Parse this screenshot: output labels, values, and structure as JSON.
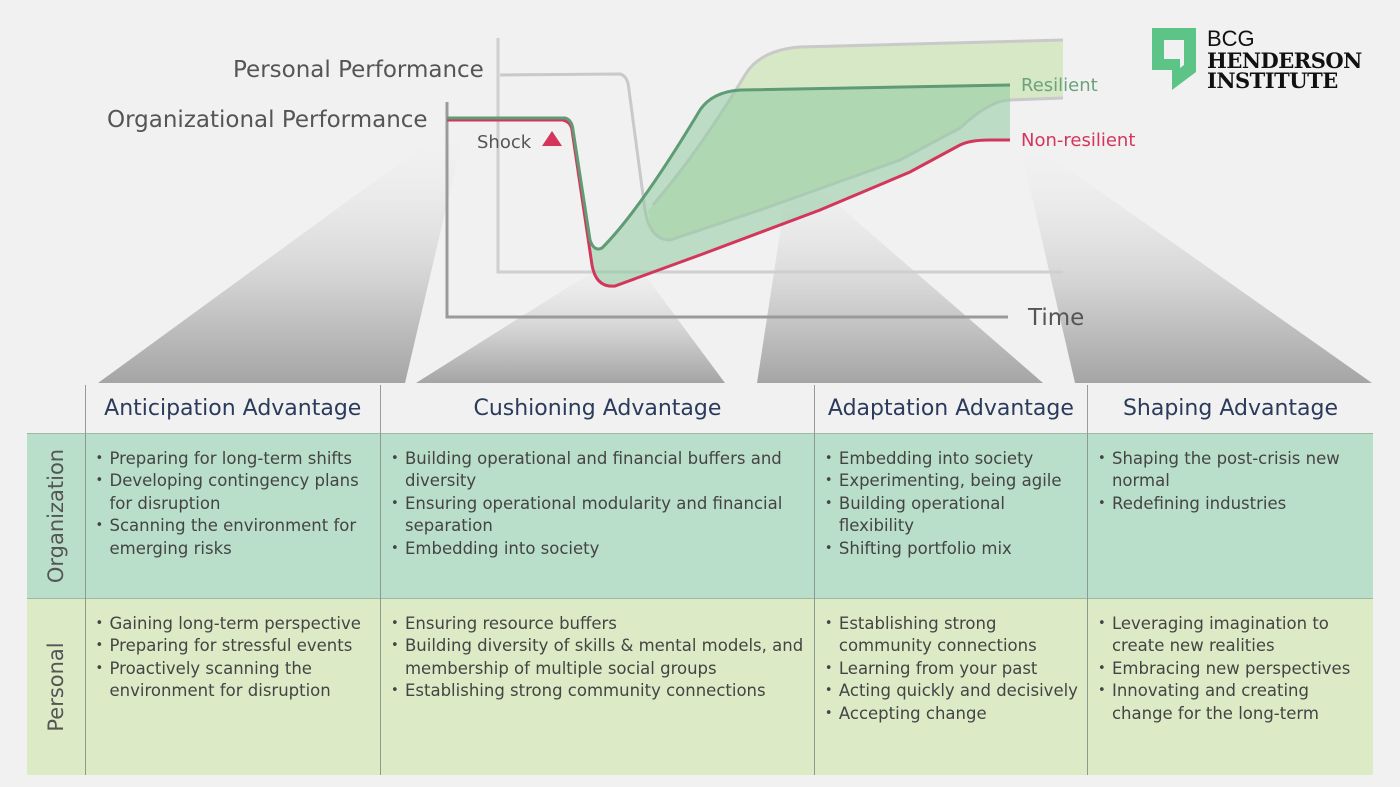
{
  "chart": {
    "personal_label": "Personal Performance",
    "org_label": "Organizational Performance",
    "shock_label": "Shock",
    "resilient_label": "Resilient",
    "nonresilient_label": "Non-resilient",
    "time_label": "Time",
    "colors": {
      "resilient": "#5f9b74",
      "nonresilient": "#d4365b",
      "org_fill": "#a9d6b8",
      "personal_fill": "#d3e7c0",
      "axis": "#9a9a9a"
    }
  },
  "logo": {
    "line1": "BCG",
    "line2": "HENDERSON",
    "line3": "INSTITUTE",
    "color": "#5cc486"
  },
  "table": {
    "headers": [
      "Anticipation Advantage",
      "Cushioning Advantage",
      "Adaptation Advantage",
      "Shaping Advantage"
    ],
    "rows": [
      {
        "label": "Organization",
        "cells": [
          [
            "Preparing for long-term shifts",
            "Developing contingency plans for disruption",
            "Scanning the environment for emerging risks"
          ],
          [
            "Building operational and financial buffers and diversity",
            "Ensuring operational modularity and financial separation",
            "Embedding into society"
          ],
          [
            "Embedding into society",
            "Experimenting, being agile",
            "Building operational flexibility",
            "Shifting portfolio mix"
          ],
          [
            "Shaping the post-crisis new normal",
            "Redefining industries"
          ]
        ]
      },
      {
        "label": "Personal",
        "cells": [
          [
            "Gaining long-term perspective",
            "Preparing for stressful events",
            "Proactively scanning the environment for disruption"
          ],
          [
            "Ensuring resource buffers",
            "Building diversity of skills & mental models, and membership of multiple social groups",
            "Establishing strong community connections"
          ],
          [
            "Establishing strong community connections",
            "Learning from your past",
            "Acting quickly and decisively",
            "Accepting change"
          ],
          [
            "Leveraging imagination to create new realities",
            "Embracing new perspectives",
            "Innovating and creating change for the long-term"
          ]
        ]
      }
    ]
  }
}
